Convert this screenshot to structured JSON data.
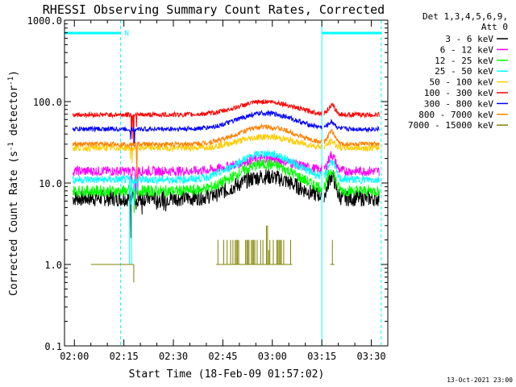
{
  "chart_data": {
    "type": "line",
    "title": "RHESSI Observing Summary Count Rates, Corrected",
    "xlabel": "Start Time (18-Feb-09 01:57:02)",
    "ylabel_main": "Corrected Count Rate (s",
    "ylabel_sup1": "-1",
    "ylabel_mid": " detector",
    "ylabel_sup2": "-1",
    "ylabel_end": ")",
    "yscale": "log",
    "ylim": [
      0.1,
      1000
    ],
    "xlim_minutes": [
      117,
      215
    ],
    "x_ticks": [
      {
        "label": "02:00",
        "value": 120
      },
      {
        "label": "02:15",
        "value": 135
      },
      {
        "label": "02:30",
        "value": 150
      },
      {
        "label": "02:45",
        "value": 165
      },
      {
        "label": "03:00",
        "value": 180
      },
      {
        "label": "03:15",
        "value": 195
      },
      {
        "label": "03:30",
        "value": 210
      }
    ],
    "y_ticks": [
      {
        "label": "1000.0",
        "value": 1000
      },
      {
        "label": "100.0",
        "value": 100
      },
      {
        "label": "10.0",
        "value": 10
      },
      {
        "label": "1.0",
        "value": 1
      },
      {
        "label": "0.1",
        "value": 0.1
      }
    ],
    "legend_header": [
      "Det 1,3,4,5,6,9,",
      "Att 0"
    ],
    "legend_position": "right",
    "series": [
      {
        "name": "3 - 6 keV",
        "color": "#000000",
        "base": 6.5,
        "peak": 12,
        "flare": 12,
        "noise": 0.1
      },
      {
        "name": "6 - 12 keV",
        "color": "#ff00ff",
        "base": 14,
        "peak": 20,
        "flare": 22,
        "noise": 0.06
      },
      {
        "name": "12 - 25 keV",
        "color": "#00ff00",
        "base": 8,
        "peak": 17,
        "flare": 14,
        "noise": 0.07
      },
      {
        "name": "25 - 50 keV",
        "color": "#00ffff",
        "base": 11,
        "peak": 23,
        "flare": 18,
        "noise": 0.05
      },
      {
        "name": "50 - 100 keV",
        "color": "#ffcc00",
        "base": 27,
        "peak": 37,
        "flare": 32,
        "noise": 0.04
      },
      {
        "name": "100 - 300 keV",
        "color": "#ff0000",
        "base": 69,
        "peak": 100,
        "flare": 88,
        "noise": 0.03
      },
      {
        "name": "300 - 800 keV",
        "color": "#0000ff",
        "base": 46,
        "peak": 72,
        "flare": 55,
        "noise": 0.03
      },
      {
        "name": "800 - 7000 keV",
        "color": "#ff8000",
        "base": 30,
        "peak": 49,
        "flare": 42,
        "noise": 0.03
      },
      {
        "name": "7000 - 15000 keV",
        "color": "#808000",
        "base": 1.0,
        "peak": 2.0,
        "flare": 1.5,
        "noise": 0
      }
    ],
    "peak_time_minutes": 178,
    "flare_time_minutes": 198,
    "saa_intervals": [
      {
        "label": "N",
        "start": 117,
        "end": 134
      }
    ],
    "night_interval": {
      "start": 134,
      "end": 195
    },
    "observing_interval": {
      "start": 195,
      "end": 213
    },
    "footer_date": "13-Oct-2021 23:00"
  }
}
